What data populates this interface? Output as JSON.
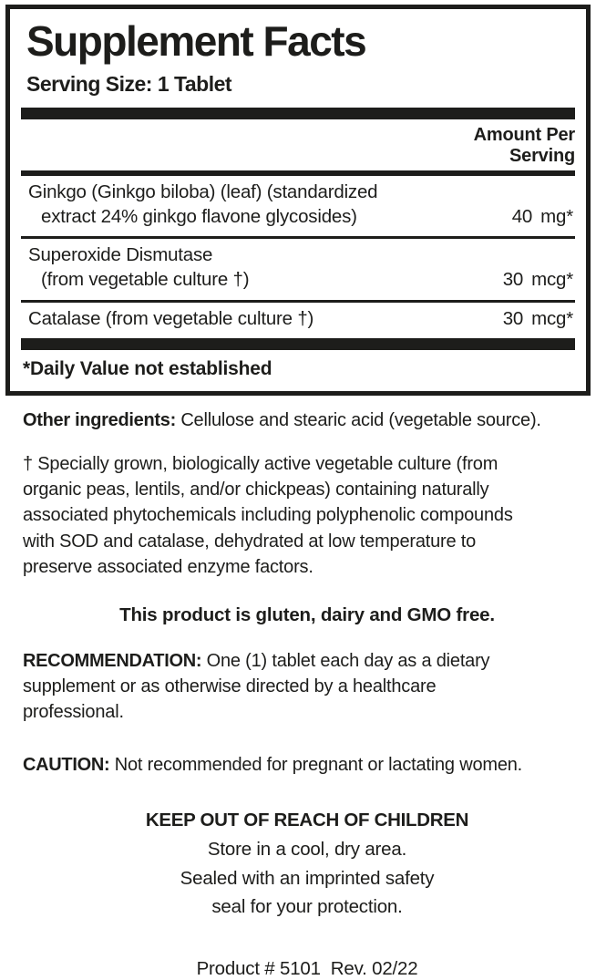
{
  "colors": {
    "ink": "#1d1d1b",
    "background": "#ffffff"
  },
  "panel": {
    "title": "Supplement Facts",
    "serving_size": "Serving Size: 1 Tablet",
    "amount_header": "Amount Per Serving",
    "rows": [
      {
        "line1": "Ginkgo (Ginkgo biloba) (leaf) (standardized",
        "line2": "extract 24% ginkgo flavone glycosides)",
        "amount": "40",
        "unit": "mg*"
      },
      {
        "line1": "Superoxide Dismutase",
        "line2": "(from vegetable culture †)",
        "amount": "30",
        "unit": "mcg*"
      },
      {
        "line1": "Catalase (from vegetable culture †)",
        "line2": "",
        "amount": "30",
        "unit": "mcg*"
      }
    ],
    "daily_value_note": "*Daily Value not established"
  },
  "other_ingredients": {
    "label": "Other ingredients:",
    "text": "Cellulose and stearic acid (vegetable source)."
  },
  "dagger_note": "† Specially grown, biologically active vegetable culture (from\norganic peas, lentils, and/or chickpeas) containing naturally\nassociated phytochemicals including polyphenolic compounds\nwith SOD and catalase, dehydrated at low temperature to\npreserve associated enzyme factors.",
  "claim": "This product is gluten, dairy and GMO free.",
  "recommendation": {
    "label": "RECOMMENDATION:",
    "text": "One (1) tablet each day as a dietary\nsupplement or as otherwise directed by a healthcare\nprofessional."
  },
  "caution": {
    "label": "CAUTION:",
    "text": "Not recommended for pregnant or lactating women."
  },
  "warning": {
    "heading": "KEEP OUT OF REACH OF CHILDREN",
    "lines": [
      "Store in a cool, dry area.",
      "Sealed with an imprinted safety",
      "seal for your protection."
    ]
  },
  "footer": {
    "product_line": "Product # 5101  Rev. 02/22"
  }
}
